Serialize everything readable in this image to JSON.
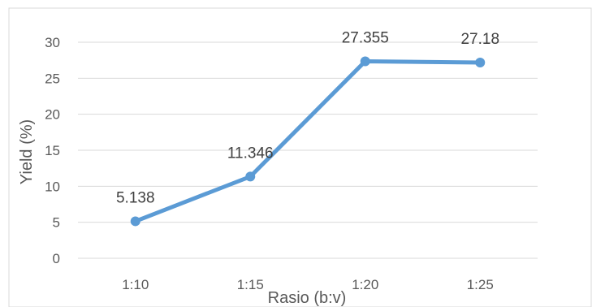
{
  "chart_data": {
    "type": "line",
    "categories": [
      "1:10",
      "1:15",
      "1:20",
      "1:25"
    ],
    "series": [
      {
        "values": [
          5.138,
          11.346,
          27.355,
          27.18
        ]
      }
    ],
    "data_labels": [
      "5.138",
      "11.346",
      "27.355",
      "27.18"
    ],
    "title": "",
    "xlabel": "Rasio (b:v)",
    "ylabel": "Yield (%)",
    "ylim": [
      0,
      30
    ],
    "yticks": [
      "0",
      "5",
      "10",
      "15",
      "20",
      "25",
      "30"
    ],
    "grid": true,
    "legend": "none",
    "colors": {
      "line": "#5B9BD5",
      "grid": "#D9D9D9",
      "frame": "#D9D9D9"
    }
  }
}
